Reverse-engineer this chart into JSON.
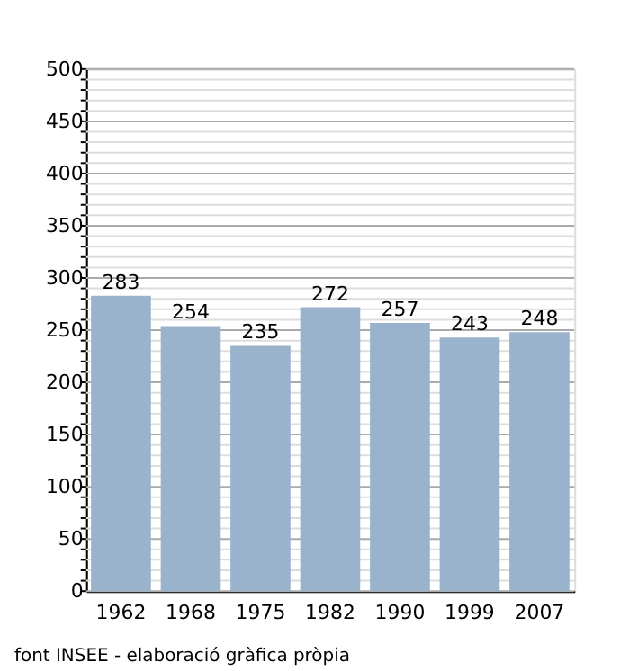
{
  "chart_data": {
    "type": "bar",
    "categories": [
      "1962",
      "1968",
      "1975",
      "1982",
      "1990",
      "1999",
      "2007"
    ],
    "values": [
      283,
      254,
      235,
      272,
      257,
      243,
      248
    ],
    "color": "#9ab3cc",
    "data_labels": true,
    "ylim": [
      0,
      500
    ],
    "yticks": [
      0,
      {
        "value": 10,
        "label": null
      },
      {
        "value": 20,
        "label": null
      },
      {
        "value": 30,
        "label": null
      },
      {
        "value": 40,
        "label": null
      },
      50,
      {
        "value": 60,
        "label": null
      },
      {
        "value": 70,
        "label": null
      },
      {
        "value": 80,
        "label": null
      },
      {
        "value": 90,
        "label": null
      },
      100,
      {
        "value": 110,
        "label": null
      },
      {
        "value": 120,
        "label": null
      },
      {
        "value": 130,
        "label": null
      },
      {
        "value": 140,
        "label": null
      },
      150,
      {
        "value": 160,
        "label": null
      },
      {
        "value": 170,
        "label": null
      },
      {
        "value": 180,
        "label": null
      },
      {
        "value": 190,
        "label": null
      },
      200,
      {
        "value": 210,
        "label": null
      },
      {
        "value": 220,
        "label": null
      },
      {
        "value": 230,
        "label": null
      },
      {
        "value": 240,
        "label": null
      },
      250,
      {
        "value": 260,
        "label": null
      },
      {
        "value": 270,
        "label": null
      },
      {
        "value": 280,
        "label": null
      },
      {
        "value": 290,
        "label": null
      },
      300,
      {
        "value": 310,
        "label": null
      },
      {
        "value": 320,
        "label": null
      },
      {
        "value": 330,
        "label": null
      },
      {
        "value": 340,
        "label": null
      },
      350,
      {
        "value": 360,
        "label": null
      },
      {
        "value": 370,
        "label": null
      },
      {
        "value": 380,
        "label": null
      },
      {
        "value": 390,
        "label": null
      },
      400,
      {
        "value": 410,
        "label": null
      },
      {
        "value": 420,
        "label": null
      },
      {
        "value": 430,
        "label": null
      },
      {
        "value": 440,
        "label": null
      },
      450,
      {
        "value": 460,
        "label": null
      },
      {
        "value": 470,
        "label": null
      },
      {
        "value": 480,
        "label": null
      },
      {
        "value": 490,
        "label": null
      },
      500
    ],
    "grid": "y",
    "annotations": [
      "font INSEE - elaboració gràfica pròpia"
    ]
  }
}
